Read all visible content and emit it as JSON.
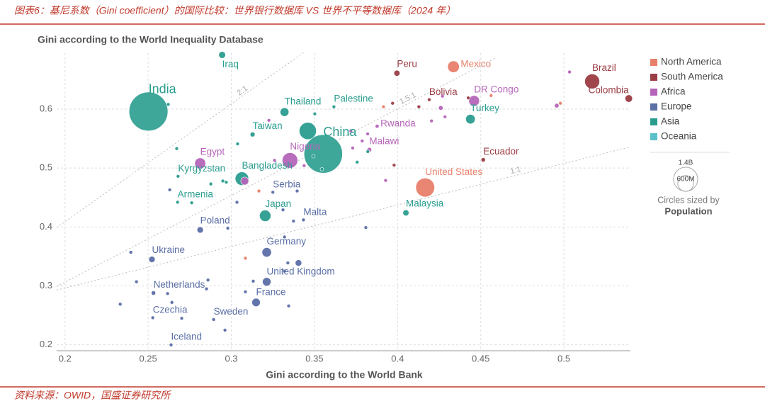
{
  "header": {
    "title": "图表6：基尼系数（Gini coefficient）的国际比较：世界银行数据库 VS 世界不平等数据库（2024 年）"
  },
  "footer": {
    "source": "资料来源：OWID，国盛证券研究所"
  },
  "chart_data": {
    "type": "scatter",
    "title": "Gini according to the World Inequality Database",
    "x_label": "Gini according to the World Bank",
    "xlim": [
      0.195,
      0.54
    ],
    "ylim": [
      0.19,
      0.695
    ],
    "xticks": [
      0.2,
      0.25,
      0.3,
      0.35,
      0.4,
      0.45,
      0.5
    ],
    "yticks": [
      0.2,
      0.3,
      0.4,
      0.5,
      0.6
    ],
    "grid": true,
    "legend": "right",
    "regions": [
      {
        "name": "North America",
        "color": "#e8806b"
      },
      {
        "name": "South America",
        "color": "#9b3d45"
      },
      {
        "name": "Africa",
        "color": "#b565b9"
      },
      {
        "name": "Europe",
        "color": "#5b6ea6"
      },
      {
        "name": "Asia",
        "color": "#2a9d8f"
      },
      {
        "name": "Oceania",
        "color": "#5bc0c8"
      }
    ],
    "size_legend": {
      "title": "Circles sized by",
      "variable": "Population",
      "values": [
        {
          "value": 1400,
          "label": "1.4B"
        },
        {
          "value": 600,
          "label": "600M"
        }
      ]
    },
    "reference_lines": [
      {
        "label": "2:1",
        "points": [
          [
            0.195,
            0.399
          ],
          [
            0.344,
            0.697
          ]
        ]
      },
      {
        "label": "1.5:1",
        "points": [
          [
            0.195,
            0.299
          ],
          [
            0.459,
            0.687
          ]
        ]
      },
      {
        "label": "1:1",
        "points": [
          [
            0.195,
            0.293
          ],
          [
            0.54,
            0.536
          ]
        ]
      }
    ],
    "points": [
      {
        "name": "India",
        "x": 0.2502,
        "y": 0.596,
        "size": 1440,
        "region": "Asia"
      },
      {
        "name": "China",
        "x": 0.3553,
        "y": 0.524,
        "size": 1410,
        "region": "Asia"
      },
      {
        "name": "Iraq",
        "x": 0.2945,
        "y": 0.692,
        "size": 45,
        "region": "Asia"
      },
      {
        "name": "Thailand",
        "x": 0.332,
        "y": 0.595,
        "size": 72,
        "region": "Asia"
      },
      {
        "name": "Palestine",
        "x": 0.3617,
        "y": 0.604,
        "size": 5,
        "region": "Asia"
      },
      {
        "name": "Peru",
        "x": 0.3996,
        "y": 0.661,
        "size": 34,
        "region": "South America"
      },
      {
        "name": "Mexico",
        "x": 0.4336,
        "y": 0.672,
        "size": 130,
        "region": "North America"
      },
      {
        "name": "Bolivia",
        "x": 0.419,
        "y": 0.616,
        "size": 12,
        "region": "South America"
      },
      {
        "name": "DR Congo",
        "x": 0.446,
        "y": 0.614,
        "size": 109,
        "region": "Africa"
      },
      {
        "name": "Turkey",
        "x": 0.4438,
        "y": 0.583,
        "size": 86,
        "region": "Asia"
      },
      {
        "name": "Brazil",
        "x": 0.517,
        "y": 0.647,
        "size": 212,
        "region": "South America"
      },
      {
        "name": "Colombia",
        "x": 0.539,
        "y": 0.618,
        "size": 53,
        "region": "South America"
      },
      {
        "name": "Rwanda",
        "x": 0.3877,
        "y": 0.571,
        "size": 14,
        "region": "Africa"
      },
      {
        "name": "Malawi",
        "x": 0.383,
        "y": 0.531,
        "size": 21,
        "region": "Africa"
      },
      {
        "name": "Nigeria",
        "x": 0.3353,
        "y": 0.513,
        "size": 230,
        "region": "Africa"
      },
      {
        "name": "Egypt",
        "x": 0.2813,
        "y": 0.508,
        "size": 114,
        "region": "Africa"
      },
      {
        "name": "Taiwan",
        "x": 0.3128,
        "y": 0.557,
        "size": 23,
        "region": "Asia"
      },
      {
        "name": "Ecuador",
        "x": 0.4515,
        "y": 0.514,
        "size": 18,
        "region": "South America"
      },
      {
        "name": "United States",
        "x": 0.4166,
        "y": 0.467,
        "size": 340,
        "region": "North America"
      },
      {
        "name": "Kyrgyzstan",
        "x": 0.268,
        "y": 0.486,
        "size": 7,
        "region": "Asia"
      },
      {
        "name": "Bangladesh",
        "x": 0.3064,
        "y": 0.482,
        "size": 173,
        "region": "Asia"
      },
      {
        "name": "Armenia",
        "x": 0.2677,
        "y": 0.442,
        "size": 3,
        "region": "Asia"
      },
      {
        "name": "Serbia",
        "x": 0.325,
        "y": 0.459,
        "size": 7,
        "region": "Europe"
      },
      {
        "name": "Japan",
        "x": 0.3204,
        "y": 0.419,
        "size": 124,
        "region": "Asia"
      },
      {
        "name": "Malta",
        "x": 0.3434,
        "y": 0.412,
        "size": 1,
        "region": "Europe"
      },
      {
        "name": "Malaysia",
        "x": 0.405,
        "y": 0.424,
        "size": 35,
        "region": "Asia"
      },
      {
        "name": "Poland",
        "x": 0.2813,
        "y": 0.395,
        "size": 38,
        "region": "Europe"
      },
      {
        "name": "Germany",
        "x": 0.3213,
        "y": 0.357,
        "size": 84,
        "region": "Europe"
      },
      {
        "name": "Ukraine",
        "x": 0.2523,
        "y": 0.345,
        "size": 38,
        "region": "Europe"
      },
      {
        "name": "United Kingdom",
        "x": 0.3213,
        "y": 0.307,
        "size": 69,
        "region": "Europe"
      },
      {
        "name": "Netherlands",
        "x": 0.2532,
        "y": 0.288,
        "size": 18,
        "region": "Europe"
      },
      {
        "name": "France",
        "x": 0.3149,
        "y": 0.272,
        "size": 66,
        "region": "Europe"
      },
      {
        "name": "Czechia",
        "x": 0.2528,
        "y": 0.246,
        "size": 11,
        "region": "Europe"
      },
      {
        "name": "Sweden",
        "x": 0.2894,
        "y": 0.243,
        "size": 10,
        "region": "Europe"
      },
      {
        "name": "Iceland",
        "x": 0.2638,
        "y": 0.2,
        "size": 0.4,
        "region": "Europe"
      },
      {
        "name": null,
        "x": 0.346,
        "y": 0.563,
        "size": 280,
        "region": "Asia"
      },
      {
        "name": null,
        "x": 0.3081,
        "y": 0.478,
        "size": 60,
        "region": "Africa"
      },
      {
        "name": null,
        "x": 0.2621,
        "y": 0.608,
        "size": 5,
        "region": "Asia"
      },
      {
        "name": null,
        "x": 0.2672,
        "y": 0.533,
        "size": 5,
        "region": "Asia"
      },
      {
        "name": null,
        "x": 0.3038,
        "y": 0.541,
        "size": 5,
        "region": "Asia"
      },
      {
        "name": null,
        "x": 0.3502,
        "y": 0.592,
        "size": 5,
        "region": "Asia"
      },
      {
        "name": null,
        "x": 0.3494,
        "y": 0.52,
        "size": 5,
        "region": "Asia"
      },
      {
        "name": null,
        "x": 0.3757,
        "y": 0.51,
        "size": 5,
        "region": "Asia"
      },
      {
        "name": null,
        "x": 0.3821,
        "y": 0.528,
        "size": 5,
        "region": "Asia"
      },
      {
        "name": null,
        "x": 0.3545,
        "y": 0.498,
        "size": 5,
        "region": "Asia"
      },
      {
        "name": null,
        "x": 0.2949,
        "y": 0.478,
        "size": 5,
        "region": "Asia"
      },
      {
        "name": null,
        "x": 0.2877,
        "y": 0.473,
        "size": 5,
        "region": "Asia"
      },
      {
        "name": null,
        "x": 0.297,
        "y": 0.476,
        "size": 5,
        "region": "Asia"
      },
      {
        "name": null,
        "x": 0.2762,
        "y": 0.441,
        "size": 5,
        "region": "Asia"
      },
      {
        "name": null,
        "x": 0.3438,
        "y": 0.504,
        "size": 5,
        "region": "Africa"
      },
      {
        "name": null,
        "x": 0.326,
        "y": 0.513,
        "size": 5,
        "region": "Africa"
      },
      {
        "name": null,
        "x": 0.397,
        "y": 0.61,
        "size": 5,
        "region": "South America"
      },
      {
        "name": null,
        "x": 0.4128,
        "y": 0.604,
        "size": 5,
        "region": "South America"
      },
      {
        "name": null,
        "x": 0.427,
        "y": 0.622,
        "size": 5,
        "region": "Africa"
      },
      {
        "name": null,
        "x": 0.426,
        "y": 0.602,
        "size": 20,
        "region": "Africa"
      },
      {
        "name": null,
        "x": 0.4285,
        "y": 0.587,
        "size": 5,
        "region": "Africa"
      },
      {
        "name": null,
        "x": 0.4204,
        "y": 0.58,
        "size": 5,
        "region": "Africa"
      },
      {
        "name": null,
        "x": 0.3915,
        "y": 0.604,
        "size": 5,
        "region": "North America"
      },
      {
        "name": null,
        "x": 0.3719,
        "y": 0.563,
        "size": 5,
        "region": "Africa"
      },
      {
        "name": null,
        "x": 0.373,
        "y": 0.534,
        "size": 5,
        "region": "Africa"
      },
      {
        "name": null,
        "x": 0.382,
        "y": 0.558,
        "size": 5,
        "region": "Africa"
      },
      {
        "name": null,
        "x": 0.3787,
        "y": 0.546,
        "size": 5,
        "region": "Africa"
      },
      {
        "name": null,
        "x": 0.3226,
        "y": 0.581,
        "size": 5,
        "region": "Africa"
      },
      {
        "name": null,
        "x": 0.3979,
        "y": 0.505,
        "size": 5,
        "region": "South America"
      },
      {
        "name": null,
        "x": 0.3928,
        "y": 0.479,
        "size": 5,
        "region": "Africa"
      },
      {
        "name": null,
        "x": 0.3809,
        "y": 0.399,
        "size": 5,
        "region": "Europe"
      },
      {
        "name": null,
        "x": 0.3311,
        "y": 0.429,
        "size": 5,
        "region": "Europe"
      },
      {
        "name": null,
        "x": 0.3374,
        "y": 0.41,
        "size": 5,
        "region": "Europe"
      },
      {
        "name": null,
        "x": 0.3396,
        "y": 0.461,
        "size": 5,
        "region": "Europe"
      },
      {
        "name": null,
        "x": 0.3166,
        "y": 0.461,
        "size": 5,
        "region": "North America"
      },
      {
        "name": null,
        "x": 0.3034,
        "y": 0.442,
        "size": 5,
        "region": "Europe"
      },
      {
        "name": null,
        "x": 0.263,
        "y": 0.463,
        "size": 5,
        "region": "Europe"
      },
      {
        "name": null,
        "x": 0.2396,
        "y": 0.357,
        "size": 5,
        "region": "Europe"
      },
      {
        "name": null,
        "x": 0.243,
        "y": 0.307,
        "size": 5,
        "region": "Europe"
      },
      {
        "name": null,
        "x": 0.2332,
        "y": 0.269,
        "size": 5,
        "region": "Europe"
      },
      {
        "name": null,
        "x": 0.286,
        "y": 0.31,
        "size": 5,
        "region": "Europe"
      },
      {
        "name": null,
        "x": 0.2617,
        "y": 0.287,
        "size": 5,
        "region": "Europe"
      },
      {
        "name": null,
        "x": 0.2643,
        "y": 0.272,
        "size": 5,
        "region": "Europe"
      },
      {
        "name": null,
        "x": 0.2851,
        "y": 0.295,
        "size": 5,
        "region": "Europe"
      },
      {
        "name": null,
        "x": 0.2702,
        "y": 0.245,
        "size": 5,
        "region": "Europe"
      },
      {
        "name": null,
        "x": 0.2962,
        "y": 0.225,
        "size": 5,
        "region": "Europe"
      },
      {
        "name": null,
        "x": 0.3085,
        "y": 0.29,
        "size": 5,
        "region": "Europe"
      },
      {
        "name": null,
        "x": 0.3132,
        "y": 0.308,
        "size": 5,
        "region": "Europe"
      },
      {
        "name": null,
        "x": 0.334,
        "y": 0.339,
        "size": 5,
        "region": "Europe"
      },
      {
        "name": null,
        "x": 0.332,
        "y": 0.325,
        "size": 5,
        "region": "Europe"
      },
      {
        "name": null,
        "x": 0.3404,
        "y": 0.339,
        "size": 40,
        "region": "Europe"
      },
      {
        "name": null,
        "x": 0.332,
        "y": 0.383,
        "size": 5,
        "region": "Europe"
      },
      {
        "name": null,
        "x": 0.3345,
        "y": 0.266,
        "size": 5,
        "region": "Europe"
      },
      {
        "name": null,
        "x": 0.3085,
        "y": 0.347,
        "size": 12,
        "region": "North America"
      },
      {
        "name": null,
        "x": 0.2979,
        "y": 0.398,
        "size": 5,
        "region": "Europe"
      },
      {
        "name": null,
        "x": 0.5034,
        "y": 0.663,
        "size": 5,
        "region": "Africa"
      },
      {
        "name": null,
        "x": 0.4957,
        "y": 0.606,
        "size": 20,
        "region": "Africa"
      },
      {
        "name": null,
        "x": 0.4979,
        "y": 0.61,
        "size": 5,
        "region": "North America"
      },
      {
        "name": null,
        "x": 0.4562,
        "y": 0.623,
        "size": 5,
        "region": "North America"
      },
      {
        "name": null,
        "x": 0.4425,
        "y": 0.619,
        "size": 5,
        "region": "South America"
      }
    ]
  }
}
